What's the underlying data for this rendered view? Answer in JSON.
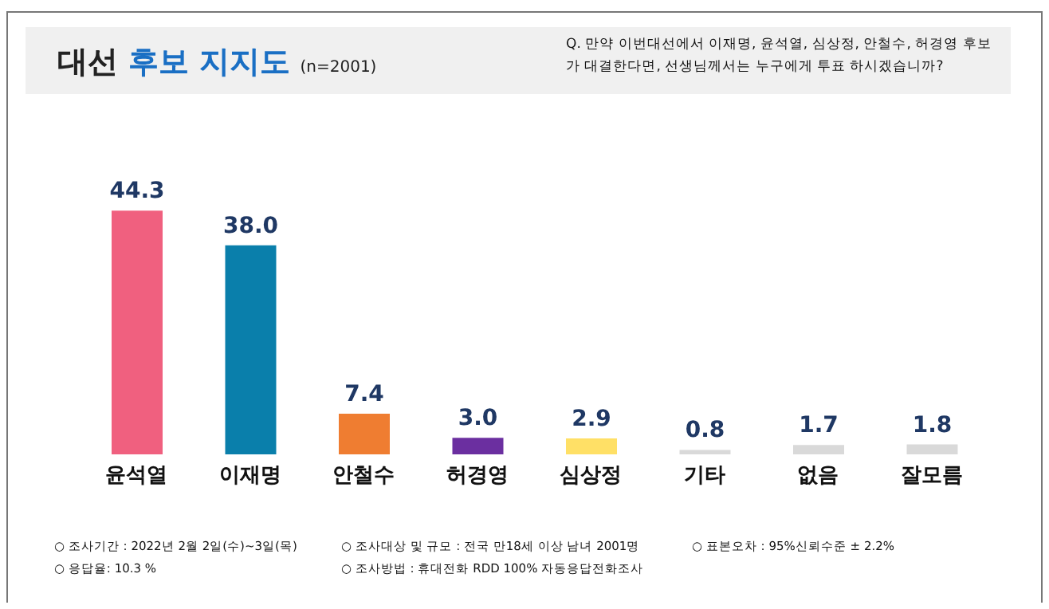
{
  "chart_data": {
    "type": "bar",
    "title": "대선 후보 지지도",
    "subtitle": "(n=2001)",
    "categories": [
      "윤석열",
      "이재명",
      "안철수",
      "허경영",
      "심상정",
      "기타",
      "없음",
      "잘모름"
    ],
    "values": [
      44.3,
      38.0,
      7.4,
      3.0,
      2.9,
      0.8,
      1.7,
      1.8
    ],
    "value_labels": [
      "44.3",
      "38.0",
      "7.4",
      "3.0",
      "2.9",
      "0.8",
      "1.7",
      "1.8"
    ],
    "colors": [
      "#f0607f",
      "#0a7fab",
      "#ef7d31",
      "#6b2fa0",
      "#ffe066",
      "#d9d9d9",
      "#d9d9d9",
      "#d9d9d9"
    ],
    "annotations": [
      "Q. 만약 이번대선에서 이재명, 윤석열, 심상정, 안철수, 허경영 후보가 대결한다면, 선생님께서는 누구에게 투표 하시겠습니까?",
      "○ 조사기간 : 2022년 2월 2일(수)~3일(목)",
      "○ 조사대상 및 규모 : 전국 만18세 이상 남녀 2001명",
      "○ 표본오차 : 95%신뢰수준 ± 2.2%",
      "○ 응답율: 10.3 %",
      "○ 조사방법 : 휴대전화 RDD 100% 자동응답전화조사"
    ]
  }
}
